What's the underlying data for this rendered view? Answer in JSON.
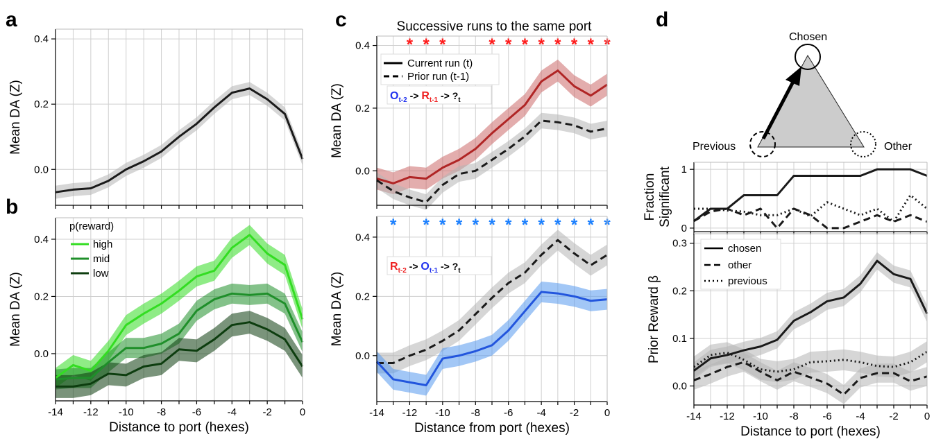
{
  "panels": {
    "a": "a",
    "b": "b",
    "c": "c",
    "d": "d"
  },
  "colors": {
    "black": "#1a1a1a",
    "gray_band": "#b5b5b5",
    "high": "#33dd22",
    "mid": "#1f8f2a",
    "low": "#0d3d0f",
    "current": "#b02525",
    "current_band": "#cc6a6a",
    "blue": "#2255dd",
    "blue_band": "#5599ee",
    "star_red": "#ff1a1a",
    "star_blue": "#1a7fff",
    "text_red": "#ee2222",
    "text_blue": "#2233ee"
  },
  "chart_data": [
    {
      "id": "a",
      "type": "line",
      "x": [
        -14,
        -13,
        -12,
        -11,
        -10,
        -9,
        -8,
        -7,
        -6,
        -5,
        -4,
        -3,
        -2,
        -1,
        0
      ],
      "xlim": [
        -14,
        0
      ],
      "ylim": [
        -0.11,
        0.43
      ],
      "yticks": [
        0.0,
        0.2,
        0.4
      ],
      "ytick_labels": [
        "0.0",
        "0.2",
        "0.4"
      ],
      "xlabel": "",
      "ylabel": "Mean DA (Z)",
      "grid": true,
      "series": [
        {
          "color": "black",
          "band": "gray_band",
          "band_width": 0.02,
          "values": [
            -0.07,
            -0.062,
            -0.058,
            -0.035,
            0.0,
            0.025,
            0.055,
            0.1,
            0.14,
            0.19,
            0.235,
            0.248,
            0.215,
            0.17,
            0.032
          ]
        }
      ]
    },
    {
      "id": "b",
      "type": "line",
      "x": [
        -14,
        -13,
        -12,
        -11,
        -10,
        -9,
        -8,
        -7,
        -6,
        -5,
        -4,
        -3,
        -2,
        -1,
        0
      ],
      "xlim": [
        -14,
        0
      ],
      "ylim": [
        -0.165,
        0.475
      ],
      "yticks": [
        0.0,
        0.2,
        0.4
      ],
      "ytick_labels": [
        "0.0",
        "0.2",
        "0.4"
      ],
      "xticks": [
        -14,
        -12,
        -10,
        -8,
        -6,
        -4,
        -2,
        0
      ],
      "xtick_labels": [
        "-14",
        "-12",
        "-10",
        "-8",
        "-6",
        "-4",
        "-2",
        "0"
      ],
      "xlabel": "Distance to port (hexes)",
      "ylabel": "Mean DA (Z)",
      "grid": true,
      "legend": {
        "title": "p(reward)",
        "entries": [
          "high",
          "mid",
          "low"
        ],
        "placement": "upper-left"
      },
      "series": [
        {
          "name": "high",
          "color": "high",
          "band": "high",
          "band_width": 0.035,
          "values": [
            -0.085,
            -0.04,
            -0.06,
            0.01,
            0.1,
            0.14,
            0.175,
            0.22,
            0.27,
            0.29,
            0.37,
            0.415,
            0.35,
            0.31,
            0.12
          ]
        },
        {
          "name": "mid",
          "color": "mid",
          "band": "mid",
          "band_width": 0.035,
          "values": [
            -0.09,
            -0.085,
            -0.085,
            -0.03,
            0.02,
            0.02,
            0.035,
            0.07,
            0.15,
            0.19,
            0.21,
            0.205,
            0.21,
            0.175,
            0.04
          ]
        },
        {
          "name": "low",
          "color": "low",
          "band": "low",
          "band_width": 0.04,
          "values": [
            -0.115,
            -0.115,
            -0.105,
            -0.07,
            -0.075,
            -0.045,
            -0.035,
            0.015,
            0.01,
            0.05,
            0.1,
            0.11,
            0.085,
            0.05,
            -0.045
          ]
        }
      ]
    },
    {
      "id": "c_top",
      "type": "line",
      "x": [
        -14,
        -13,
        -12,
        -11,
        -10,
        -9,
        -8,
        -7,
        -6,
        -5,
        -4,
        -3,
        -2,
        -1,
        0
      ],
      "xlim": [
        -14,
        0
      ],
      "ylim": [
        -0.11,
        0.43
      ],
      "yticks": [
        0.0,
        0.2,
        0.4
      ],
      "ytick_labels": [
        "0.0",
        "0.2",
        "0.4"
      ],
      "title": "Successive runs to the same port",
      "xlabel": "",
      "ylabel": "Mean DA (Z)",
      "grid": true,
      "legend": {
        "entries": [
          "Current run (t)",
          "Prior run (t-1)"
        ],
        "placement": "upper-left"
      },
      "annotation": {
        "p1": "O",
        "s1": "t-2",
        "arrow1": " -> ",
        "p2": "R",
        "s2": "t-1",
        "arrow2": " -> ?",
        "s3": "t"
      },
      "stars": {
        "glyph": "*",
        "x": [
          -12,
          -11,
          -10,
          -7,
          -6,
          -5,
          -4,
          -3,
          -2,
          -1,
          0
        ],
        "color": "star_red"
      },
      "series": [
        {
          "name": "Current run (t)",
          "color": "current",
          "band": "current_band",
          "band_width": 0.035,
          "dash": false,
          "values": [
            -0.025,
            -0.04,
            -0.02,
            -0.025,
            0.01,
            0.035,
            0.07,
            0.12,
            0.165,
            0.21,
            0.285,
            0.32,
            0.27,
            0.24,
            0.275
          ]
        },
        {
          "name": "Prior run (t-1)",
          "color": "black",
          "band": "gray_band",
          "band_width": 0.025,
          "dash": true,
          "values": [
            -0.03,
            -0.065,
            -0.085,
            -0.1,
            -0.045,
            -0.01,
            0.0,
            0.035,
            0.07,
            0.11,
            0.16,
            0.155,
            0.145,
            0.125,
            0.135
          ]
        }
      ]
    },
    {
      "id": "c_bottom",
      "type": "line",
      "x": [
        -14,
        -13,
        -12,
        -11,
        -10,
        -9,
        -8,
        -7,
        -6,
        -5,
        -4,
        -3,
        -2,
        -1,
        0
      ],
      "xlim": [
        -14,
        0
      ],
      "ylim": [
        -0.155,
        0.47
      ],
      "yticks": [
        0.0,
        0.2,
        0.4
      ],
      "ytick_labels": [
        "0.0",
        "0.2",
        "0.4"
      ],
      "xticks": [
        -14,
        -12,
        -10,
        -8,
        -6,
        -4,
        -2,
        0
      ],
      "xtick_labels": [
        "-14",
        "-12",
        "-10",
        "-8",
        "-6",
        "-4",
        "-2",
        "0"
      ],
      "xlabel": "Distance from port (hexes)",
      "ylabel": "Mean DA (Z)",
      "grid": true,
      "annotation": {
        "p1": "R",
        "s1": "t-2",
        "arrow1": " -> ",
        "p2": "O",
        "s2": "t-1",
        "arrow2": " -> ?",
        "s3": "t"
      },
      "stars": {
        "glyph": "*",
        "x": [
          -13,
          -11,
          -10,
          -9,
          -8,
          -7,
          -6,
          -5,
          -4,
          -3,
          -2,
          -1,
          0
        ],
        "color": "star_blue"
      },
      "series": [
        {
          "color": "black",
          "band": "gray_band",
          "band_width": 0.035,
          "dash": true,
          "values": [
            -0.025,
            -0.025,
            0.0,
            0.02,
            0.05,
            0.085,
            0.14,
            0.195,
            0.245,
            0.28,
            0.34,
            0.39,
            0.345,
            0.305,
            0.34
          ]
        },
        {
          "color": "blue",
          "band": "blue_band",
          "band_width": 0.035,
          "dash": false,
          "values": [
            -0.02,
            -0.08,
            -0.09,
            -0.1,
            -0.01,
            0.0,
            0.015,
            0.035,
            0.085,
            0.15,
            0.215,
            0.21,
            0.2,
            0.185,
            0.19
          ]
        }
      ]
    },
    {
      "id": "d_top",
      "type": "line",
      "x": [
        -14,
        -13,
        -12,
        -11,
        -10,
        -9,
        -8,
        -7,
        -6,
        -5,
        -4,
        -3,
        -2,
        -1,
        0
      ],
      "xlim": [
        -14,
        0
      ],
      "ylim": [
        -0.06,
        1.12
      ],
      "yticks": [
        0,
        1
      ],
      "ytick_labels": [
        "0",
        "1"
      ],
      "xlabel": "",
      "ylabel": [
        "Fraction",
        "Significant"
      ],
      "grid": true,
      "series": [
        {
          "name": "chosen",
          "color": "black",
          "dash": "solid",
          "values": [
            0.12,
            0.33,
            0.33,
            0.56,
            0.56,
            0.56,
            0.89,
            0.89,
            0.89,
            0.89,
            0.89,
            1.0,
            1.0,
            1.0,
            0.89
          ]
        },
        {
          "name": "other",
          "color": "black",
          "dash": "dashed",
          "values": [
            0.12,
            0.28,
            0.33,
            0.22,
            0.33,
            0.0,
            0.33,
            0.22,
            0.0,
            0.0,
            0.11,
            0.22,
            0.11,
            0.22,
            0.11
          ]
        },
        {
          "name": "previous",
          "color": "black",
          "dash": "dotted",
          "values": [
            0.33,
            0.33,
            0.3,
            0.28,
            0.22,
            0.22,
            0.33,
            0.2,
            0.44,
            0.33,
            0.22,
            0.33,
            0.11,
            0.56,
            0.33
          ]
        }
      ]
    },
    {
      "id": "d_bottom",
      "type": "line",
      "x": [
        -14,
        -13,
        -12,
        -11,
        -10,
        -9,
        -8,
        -7,
        -6,
        -5,
        -4,
        -3,
        -2,
        -1,
        0
      ],
      "xlim": [
        -14,
        0
      ],
      "ylim": [
        -0.04,
        0.32
      ],
      "yticks": [
        0.0,
        0.1,
        0.2,
        0.3
      ],
      "ytick_labels": [
        "0.0",
        "0.1",
        "0.2",
        "0.3"
      ],
      "xticks": [
        -14,
        -12,
        -10,
        -8,
        -6,
        -4,
        -2,
        0
      ],
      "xtick_labels": [
        "-14",
        "-12",
        "-10",
        "-8",
        "-6",
        "-4",
        "-2",
        "0"
      ],
      "xlabel": "Distance to port (hexes)",
      "ylabel": "Prior Reward β",
      "grid": true,
      "legend": {
        "entries": [
          "chosen",
          "other",
          "previous"
        ],
        "placement": "upper-left"
      },
      "series": [
        {
          "name": "chosen",
          "color": "black",
          "dash": "solid",
          "band": "gray_band",
          "band_width": 0.018,
          "values": [
            0.032,
            0.058,
            0.065,
            0.075,
            0.083,
            0.097,
            0.137,
            0.155,
            0.178,
            0.186,
            0.215,
            0.263,
            0.235,
            0.225,
            0.152
          ]
        },
        {
          "name": "other",
          "color": "black",
          "dash": "dashed",
          "band": "gray_band",
          "band_width": 0.02,
          "values": [
            0.012,
            0.025,
            0.04,
            0.05,
            0.03,
            0.012,
            0.03,
            0.018,
            0.005,
            -0.018,
            0.017,
            0.027,
            0.027,
            0.01,
            0.02
          ]
        },
        {
          "name": "previous",
          "color": "black",
          "dash": "dotted",
          "band": "gray_band",
          "band_width": 0.022,
          "values": [
            0.04,
            0.065,
            0.07,
            0.055,
            0.035,
            0.03,
            0.035,
            0.05,
            0.052,
            0.055,
            0.05,
            0.042,
            0.04,
            0.05,
            0.072
          ]
        }
      ]
    }
  ],
  "diagram": {
    "chosen": "Chosen",
    "previous": "Previous",
    "other": "Other"
  }
}
